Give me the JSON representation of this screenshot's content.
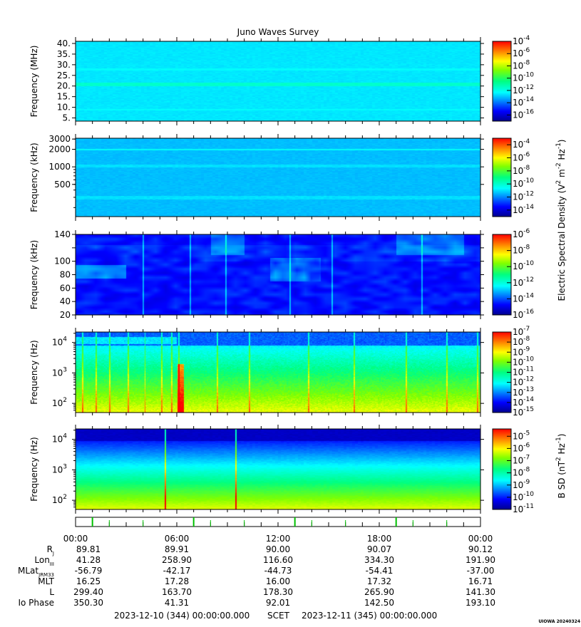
{
  "title": "Juno Waves Survey",
  "credit": "UIOWA 20240324",
  "colorbar_titles": {
    "electric": [
      "Electric Spectral Density (V",
      "2",
      " m",
      "-2",
      " Hz",
      "-1",
      ")"
    ],
    "magnetic": [
      "B SD (nT",
      "2",
      " Hz",
      "-1",
      ")"
    ]
  },
  "chart_data": [
    {
      "type": "heatmap",
      "panel": 1,
      "ylabel": "Frequency (MHz)",
      "yscale": "linear",
      "ylim": [
        3.5,
        41
      ],
      "yticks": [
        {
          "v": 5,
          "label": "5."
        },
        {
          "v": 10,
          "label": "10."
        },
        {
          "v": 15,
          "label": "15."
        },
        {
          "v": 20,
          "label": "20."
        },
        {
          "v": 25,
          "label": "25."
        },
        {
          "v": 30,
          "label": "30."
        },
        {
          "v": 35,
          "label": "35."
        },
        {
          "v": 40,
          "label": "40."
        }
      ],
      "colorbar": {
        "min_exp": -17,
        "max_exp": -4,
        "ticks": [
          -4,
          -6,
          -8,
          -10,
          -12,
          -14,
          -16
        ]
      },
      "background_level": -12.6,
      "bands": [
        {
          "center": 21,
          "width": 1.6,
          "level": -11.6
        },
        {
          "center": 28,
          "width": 0.8,
          "level": -12.3
        },
        {
          "center": 9,
          "width": 0.8,
          "level": -12.3
        }
      ]
    },
    {
      "type": "heatmap",
      "panel": 2,
      "ylabel": "Frequency (kHz)",
      "yscale": "log",
      "ylim": [
        140,
        3100
      ],
      "yticks": [
        {
          "v": 500,
          "label": "500"
        },
        {
          "v": 1000,
          "label": "1000"
        },
        {
          "v": 2000,
          "label": "2000"
        },
        {
          "v": 3000,
          "label": "3000"
        }
      ],
      "colorbar": {
        "min_exp": -15,
        "max_exp": -3,
        "ticks": [
          -4,
          -6,
          -8,
          -10,
          -12,
          -14
        ]
      },
      "background_level": -11.4,
      "bands": [
        {
          "center": 2000,
          "width": 150,
          "level": -10.6
        },
        {
          "center": 1050,
          "width": 100,
          "level": -11.0
        },
        {
          "center": 300,
          "width": 40,
          "level": -11.0
        }
      ]
    },
    {
      "type": "heatmap",
      "panel": 3,
      "ylabel": "Frequency (kHz)",
      "yscale": "linear",
      "ylim": [
        20,
        140
      ],
      "yticks": [
        {
          "v": 20,
          "label": "20"
        },
        {
          "v": 40,
          "label": "40"
        },
        {
          "v": 60,
          "label": "60"
        },
        {
          "v": 80,
          "label": "80"
        },
        {
          "v": 100,
          "label": "100"
        },
        {
          "v": 120,
          "label": ""
        },
        {
          "v": 140,
          "label": "140"
        }
      ],
      "colorbar": {
        "min_exp": -16,
        "max_exp": -6,
        "ticks": [
          -6,
          -8,
          -10,
          -12,
          -14,
          -16
        ]
      },
      "background_level": -14.6
    },
    {
      "type": "heatmap",
      "panel": 4,
      "ylabel": "Frequency (Hz)",
      "yscale": "log",
      "ylim": [
        50,
        22000
      ],
      "yticks": [
        {
          "v": 100,
          "label": "10",
          "exp": "2"
        },
        {
          "v": 1000,
          "label": "10",
          "exp": "3"
        },
        {
          "v": 10000,
          "label": "10",
          "exp": "4"
        }
      ],
      "colorbar": {
        "min_exp": -15,
        "max_exp": -7,
        "ticks": [
          -7,
          -8,
          -9,
          -10,
          -11,
          -12,
          -13,
          -14,
          -15
        ]
      },
      "background_level": -12.5
    },
    {
      "type": "heatmap",
      "panel": 5,
      "ylabel": "Frequency (Hz)",
      "yscale": "log",
      "ylim": [
        50,
        22000
      ],
      "yticks": [
        {
          "v": 100,
          "label": "10",
          "exp": "2"
        },
        {
          "v": 1000,
          "label": "10",
          "exp": "3"
        },
        {
          "v": 10000,
          "label": "10",
          "exp": "4"
        }
      ],
      "colorbar": {
        "min_exp": -11,
        "max_exp": -4.4,
        "ticks": [
          -5,
          -6,
          -7,
          -8,
          -9,
          -10,
          -11
        ]
      },
      "background_level": -8.0
    }
  ],
  "time_axis": {
    "start": "2023-12-10 (344) 00:00:00.000",
    "scet_label": "SCET",
    "end": "2023-12-11 (345) 00:00:00.000",
    "tick_labels": [
      "00:00",
      "06:00",
      "12:00",
      "18:00",
      "00:00"
    ]
  },
  "ephemeris": [
    {
      "label": "R",
      "sub": "J",
      "values": [
        "89.81",
        "89.91",
        "90.00",
        "90.07",
        "90.12"
      ]
    },
    {
      "label": "Lon",
      "sub": "III",
      "values": [
        "41.28",
        "258.90",
        "116.60",
        "334.30",
        "191.90"
      ]
    },
    {
      "label": "MLat",
      "sub": "JRM33",
      "values": [
        "-56.79",
        "-42.17",
        "-44.73",
        "-54.41",
        "-37.00"
      ]
    },
    {
      "label": "MLT",
      "sub": "",
      "values": [
        "16.25",
        "17.28",
        "16.00",
        "17.32",
        "16.71"
      ]
    },
    {
      "label": "L",
      "sub": "",
      "values": [
        "299.40",
        "163.70",
        "178.30",
        "265.90",
        "141.30"
      ]
    },
    {
      "label": "Io Phase",
      "sub": "",
      "values": [
        "350.30",
        "41.31",
        "92.01",
        "142.50",
        "193.10"
      ]
    }
  ]
}
